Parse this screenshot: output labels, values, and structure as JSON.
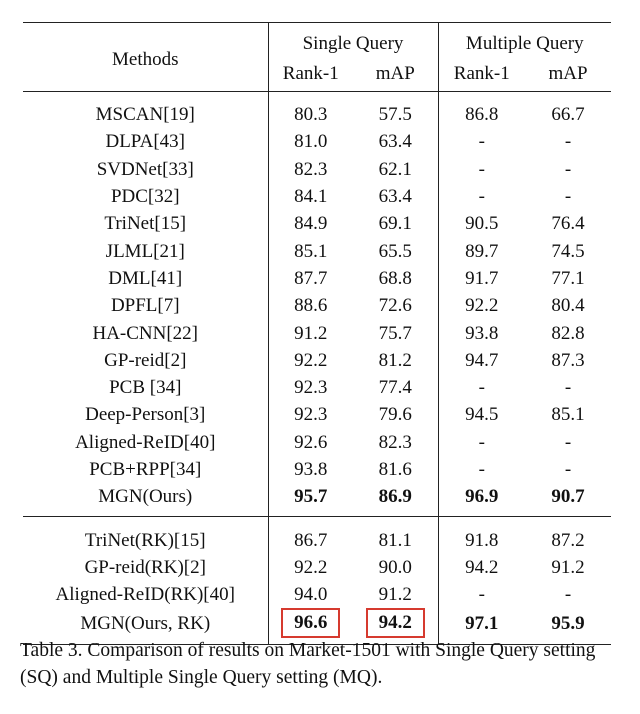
{
  "header": {
    "methods": "Methods",
    "single_query": "Single Query",
    "multiple_query": "Multiple Query",
    "sub": [
      "Rank-1",
      "mAP",
      "Rank-1",
      "mAP"
    ]
  },
  "group1": [
    {
      "method": "MSCAN[19]",
      "v": [
        "80.3",
        "57.5",
        "86.8",
        "66.7"
      ]
    },
    {
      "method": "DLPA[43]",
      "v": [
        "81.0",
        "63.4",
        "-",
        "-"
      ]
    },
    {
      "method": "SVDNet[33]",
      "v": [
        "82.3",
        "62.1",
        "-",
        "-"
      ]
    },
    {
      "method": "PDC[32]",
      "v": [
        "84.1",
        "63.4",
        "-",
        "-"
      ]
    },
    {
      "method": "TriNet[15]",
      "v": [
        "84.9",
        "69.1",
        "90.5",
        "76.4"
      ]
    },
    {
      "method": "JLML[21]",
      "v": [
        "85.1",
        "65.5",
        "89.7",
        "74.5"
      ]
    },
    {
      "method": "DML[41]",
      "v": [
        "87.7",
        "68.8",
        "91.7",
        "77.1"
      ]
    },
    {
      "method": "DPFL[7]",
      "v": [
        "88.6",
        "72.6",
        "92.2",
        "80.4"
      ]
    },
    {
      "method": "HA-CNN[22]",
      "v": [
        "91.2",
        "75.7",
        "93.8",
        "82.8"
      ]
    },
    {
      "method": "GP-reid[2]",
      "v": [
        "92.2",
        "81.2",
        "94.7",
        "87.3"
      ]
    },
    {
      "method": "PCB [34]",
      "v": [
        "92.3",
        "77.4",
        "-",
        "-"
      ]
    },
    {
      "method": "Deep-Person[3]",
      "v": [
        "92.3",
        "79.6",
        "94.5",
        "85.1"
      ]
    },
    {
      "method": "Aligned-ReID[40]",
      "v": [
        "92.6",
        "82.3",
        "-",
        "-"
      ]
    },
    {
      "method": "PCB+RPP[34]",
      "v": [
        "93.8",
        "81.6",
        "-",
        "-"
      ]
    },
    {
      "method": "MGN(Ours)",
      "v": [
        "95.7",
        "86.9",
        "96.9",
        "90.7"
      ]
    }
  ],
  "group2": [
    {
      "method": "TriNet(RK)[15]",
      "v": [
        "86.7",
        "81.1",
        "91.8",
        "87.2"
      ]
    },
    {
      "method": "GP-reid(RK)[2]",
      "v": [
        "92.2",
        "90.0",
        "94.2",
        "91.2"
      ]
    },
    {
      "method": "Aligned-ReID(RK)[40]",
      "v": [
        "94.0",
        "91.2",
        "-",
        "-"
      ]
    },
    {
      "method": "MGN(Ours, RK)",
      "v": [
        "96.6",
        "94.2",
        "97.1",
        "95.9"
      ]
    }
  ],
  "caption": "Table 3. Comparison of results on Market-1501 with Single Query setting (SQ) and Multiple Single Query setting (MQ).",
  "colors": {
    "highlight_box": "#d63a2f",
    "rule": "#222222"
  }
}
